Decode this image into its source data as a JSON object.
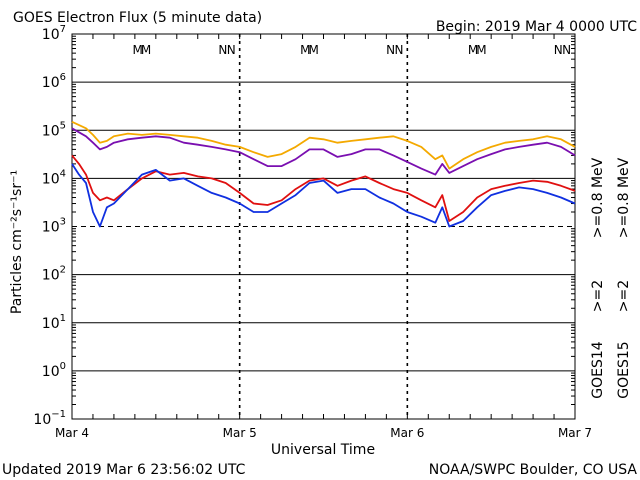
{
  "header": {
    "title": "GOES Electron Flux (5 minute data)",
    "begin": "Begin: 2019 Mar 4 0000 UTC"
  },
  "footer": {
    "updated": "Updated 2019 Mar  6 23:56:02 UTC",
    "credit": "NOAA/SWPC Boulder, CO USA"
  },
  "axes": {
    "xlabel": "Universal Time",
    "ylabel": "Particles cm⁻²s⁻¹sr⁻¹"
  },
  "legend": {
    "goes14": "GOES14",
    "goes15": "GOES15",
    "g14_08": ">=0.8  MeV",
    "g15_08": ">=0.8  MeV",
    "g14_2": ">=2",
    "g15_2": ">=2"
  },
  "colors": {
    "g14_08": "#7a0fb0",
    "g15_08": "#f4a900",
    "g14_2": "#1030e0",
    "g15_2": "#e01010",
    "marker_blue": "#1030e0",
    "marker_red": "#e01010"
  },
  "chart_data": {
    "type": "line",
    "title": "GOES Electron Flux (5 minute data)",
    "xlabel": "Universal Time",
    "ylabel": "Particles cm⁻²s⁻¹sr⁻¹",
    "y_scale": "log",
    "ylim": [
      0.1,
      10000000
    ],
    "y_ticks": [
      {
        "value": 0.1,
        "mant": "10",
        "exp": "−1"
      },
      {
        "value": 1,
        "mant": "10",
        "exp": "0"
      },
      {
        "value": 10,
        "mant": "10",
        "exp": "1"
      },
      {
        "value": 100,
        "mant": "10",
        "exp": "2"
      },
      {
        "value": 1000,
        "mant": "10",
        "exp": "3"
      },
      {
        "value": 10000,
        "mant": "10",
        "exp": "4"
      },
      {
        "value": 100000,
        "mant": "10",
        "exp": "5"
      },
      {
        "value": 1000000,
        "mant": "10",
        "exp": "6"
      },
      {
        "value": 10000000,
        "mant": "10",
        "exp": "7"
      }
    ],
    "xlim": [
      0,
      72
    ],
    "x_unit": "hours since 2019 Mar 4 0000 UTC",
    "x_ticks": [
      {
        "value": 0,
        "label": "Mar 4"
      },
      {
        "value": 24,
        "label": "Mar 5"
      },
      {
        "value": 48,
        "label": "Mar 6"
      },
      {
        "value": 72,
        "label": "Mar 7"
      }
    ],
    "threshold": 1000,
    "markers": [
      {
        "label": "M",
        "x": 9.4,
        "series": "GOES14"
      },
      {
        "label": "M",
        "x": 10.6,
        "series": "GOES15"
      },
      {
        "label": "N",
        "x": 21.6,
        "series": "GOES14"
      },
      {
        "label": "N",
        "x": 22.8,
        "series": "GOES15"
      },
      {
        "label": "M",
        "x": 33.4,
        "series": "GOES14"
      },
      {
        "label": "M",
        "x": 34.6,
        "series": "GOES15"
      },
      {
        "label": "N",
        "x": 45.6,
        "series": "GOES14"
      },
      {
        "label": "N",
        "x": 46.8,
        "series": "GOES15"
      },
      {
        "label": "M",
        "x": 57.4,
        "series": "GOES14"
      },
      {
        "label": "M",
        "x": 58.6,
        "series": "GOES15"
      },
      {
        "label": "N",
        "x": 69.6,
        "series": "GOES14"
      },
      {
        "label": "N",
        "x": 70.8,
        "series": "GOES15"
      }
    ],
    "series": [
      {
        "name": "GOES15 >=0.8 MeV",
        "color": "#f4a900",
        "x": [
          0,
          2,
          3,
          4,
          5,
          6,
          8,
          10,
          12,
          14,
          16,
          18,
          20,
          22,
          24,
          26,
          28,
          30,
          32,
          34,
          36,
          38,
          40,
          42,
          44,
          46,
          48,
          50,
          52,
          53,
          54,
          56,
          58,
          60,
          62,
          64,
          66,
          68,
          70,
          72
        ],
        "y": [
          150000,
          110000,
          80000,
          55000,
          60000,
          75000,
          85000,
          80000,
          85000,
          80000,
          75000,
          70000,
          60000,
          50000,
          45000,
          35000,
          28000,
          32000,
          45000,
          70000,
          65000,
          55000,
          60000,
          65000,
          70000,
          75000,
          60000,
          45000,
          25000,
          30000,
          16000,
          25000,
          35000,
          45000,
          55000,
          60000,
          65000,
          75000,
          65000,
          45000
        ]
      },
      {
        "name": "GOES14 >=0.8 MeV",
        "color": "#7a0fb0",
        "x": [
          0,
          2,
          3,
          4,
          5,
          6,
          8,
          10,
          12,
          14,
          16,
          18,
          20,
          22,
          24,
          26,
          28,
          30,
          32,
          34,
          36,
          38,
          40,
          42,
          44,
          46,
          48,
          50,
          52,
          53,
          54,
          56,
          58,
          60,
          62,
          64,
          66,
          68,
          70,
          72
        ],
        "y": [
          110000,
          75000,
          55000,
          40000,
          45000,
          55000,
          65000,
          70000,
          75000,
          70000,
          55000,
          50000,
          45000,
          40000,
          35000,
          25000,
          18000,
          18000,
          25000,
          40000,
          40000,
          28000,
          32000,
          40000,
          40000,
          30000,
          22000,
          16000,
          12000,
          20000,
          13000,
          18000,
          25000,
          32000,
          40000,
          45000,
          50000,
          55000,
          45000,
          30000
        ]
      },
      {
        "name": "GOES15 >=2 MeV",
        "color": "#e01010",
        "x": [
          0,
          1,
          2,
          3,
          4,
          5,
          6,
          8,
          10,
          12,
          14,
          16,
          18,
          20,
          22,
          24,
          26,
          28,
          30,
          32,
          34,
          36,
          38,
          40,
          42,
          44,
          46,
          48,
          50,
          52,
          53,
          54,
          56,
          58,
          60,
          62,
          64,
          66,
          68,
          70,
          72
        ],
        "y": [
          30000,
          20000,
          12000,
          5000,
          3500,
          4000,
          3500,
          6000,
          10000,
          14000,
          12000,
          13000,
          11000,
          10000,
          8000,
          5000,
          3000,
          2800,
          3500,
          6000,
          9000,
          10000,
          7000,
          9000,
          11000,
          8000,
          6000,
          5000,
          3500,
          2500,
          4500,
          1300,
          2000,
          4000,
          6000,
          7000,
          8000,
          9000,
          8500,
          7000,
          5500
        ]
      },
      {
        "name": "GOES14 >=2 MeV",
        "color": "#1030e0",
        "x": [
          0,
          1,
          2,
          3,
          4,
          5,
          6,
          8,
          10,
          12,
          14,
          16,
          18,
          20,
          22,
          24,
          26,
          28,
          30,
          32,
          34,
          36,
          38,
          40,
          42,
          44,
          46,
          48,
          50,
          52,
          53,
          54,
          56,
          58,
          60,
          62,
          64,
          66,
          68,
          70,
          72
        ],
        "y": [
          20000,
          12000,
          8000,
          2000,
          1000,
          2500,
          3000,
          6000,
          12000,
          15000,
          9000,
          10000,
          7000,
          5000,
          4000,
          3000,
          2000,
          2000,
          3000,
          4500,
          8000,
          9000,
          5000,
          6000,
          6000,
          4000,
          3000,
          2000,
          1600,
          1200,
          2500,
          1000,
          1300,
          2500,
          4500,
          5500,
          6500,
          6000,
          5000,
          4000,
          3000
        ]
      }
    ]
  }
}
